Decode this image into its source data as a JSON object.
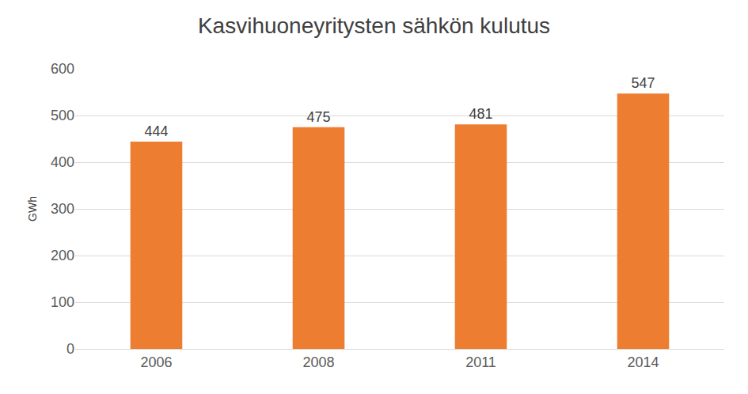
{
  "chart_data": {
    "type": "bar",
    "title": "Kasvihuoneyritysten sähkön kulutus",
    "y_label": "GWh",
    "categories": [
      "2006",
      "2008",
      "2011",
      "2014"
    ],
    "values": [
      444,
      475,
      481,
      547
    ],
    "color": "#ed7d31",
    "ylim": [
      0,
      600
    ],
    "yticks": [
      0,
      100,
      200,
      300,
      400,
      500,
      600
    ],
    "grid": true,
    "data_labels": true
  }
}
